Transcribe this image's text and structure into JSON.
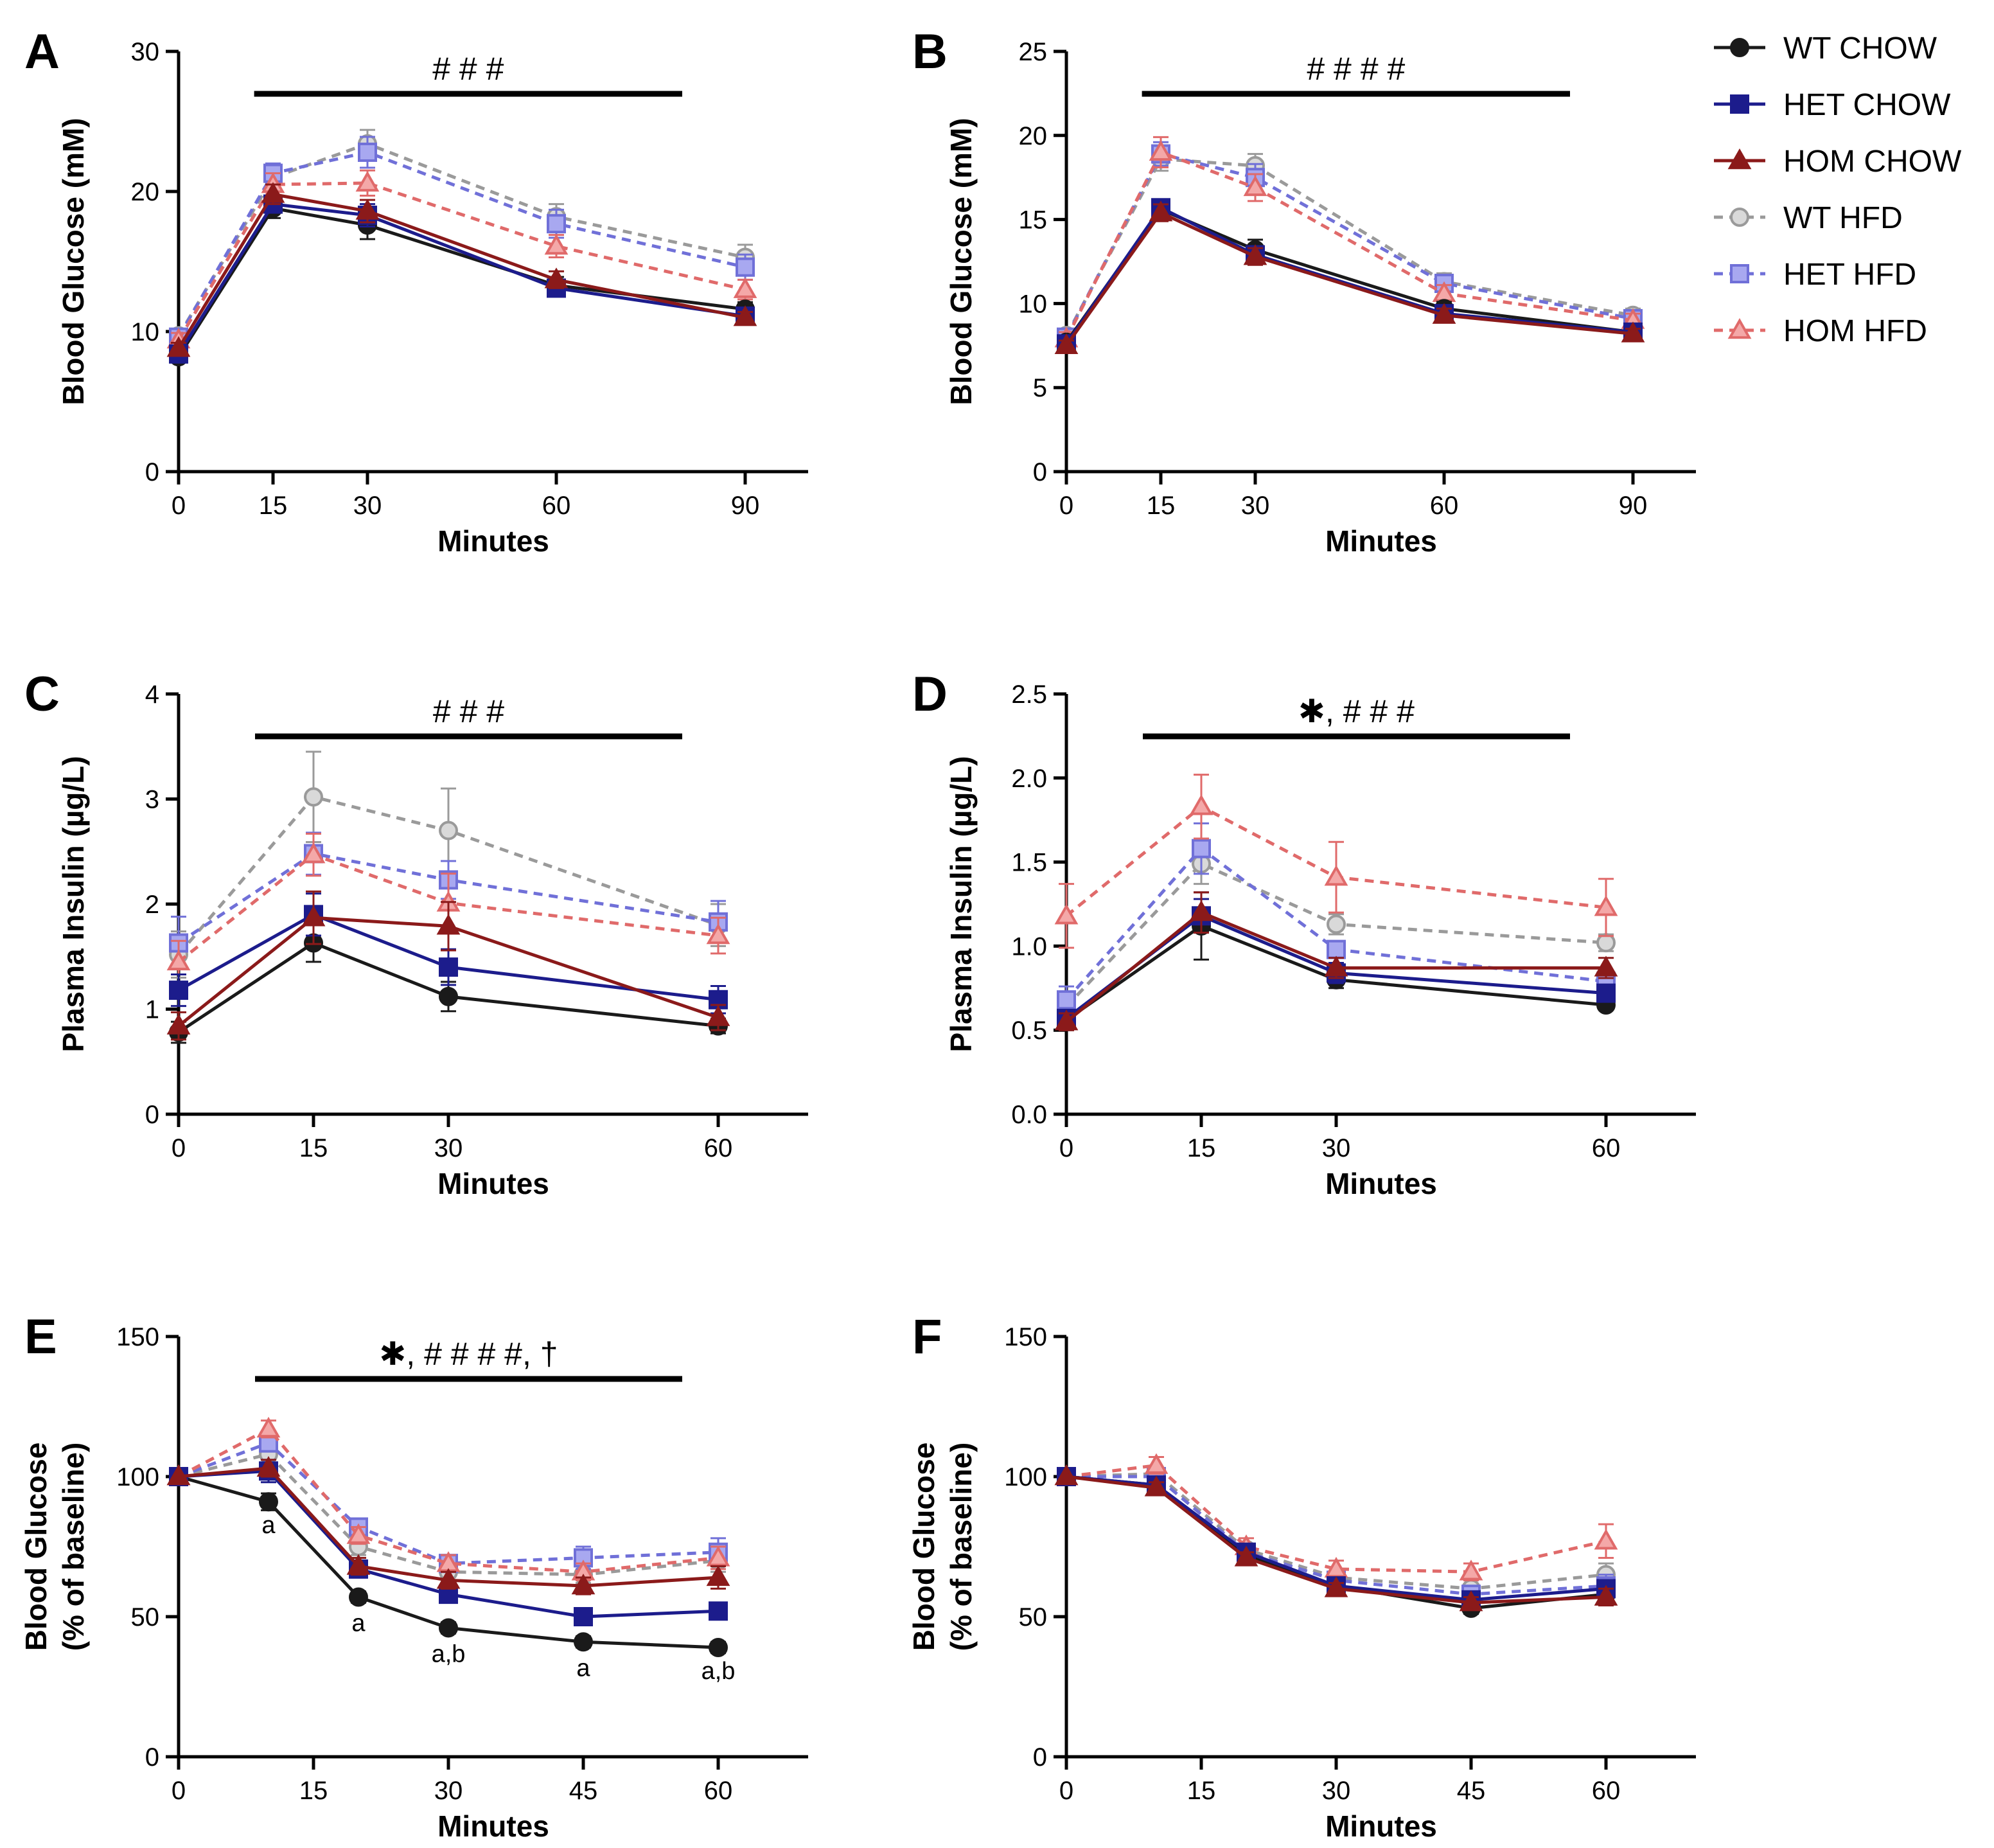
{
  "colors": {
    "wt_chow": "#1a1a1a",
    "het_chow": "#1c1c8c",
    "hom_chow": "#8b1a1a",
    "wt_hfd": "#9a9a9a",
    "het_hfd": "#7070d8",
    "hom_hfd": "#e06a6a",
    "wt_hfd_fill": "#d9d9d9",
    "het_hfd_fill": "#a8a8f0",
    "hom_hfd_fill": "#f4a8a8"
  },
  "legend": {
    "items": [
      {
        "label": "WT CHOW",
        "key": "wt_chow",
        "marker": "circle",
        "filled": true,
        "dashed": false
      },
      {
        "label": "HET CHOW",
        "key": "het_chow",
        "marker": "square",
        "filled": true,
        "dashed": false
      },
      {
        "label": "HOM CHOW",
        "key": "hom_chow",
        "marker": "triangle",
        "filled": true,
        "dashed": false
      },
      {
        "label": "WT HFD",
        "key": "wt_hfd",
        "marker": "circle",
        "filled": false,
        "dashed": true
      },
      {
        "label": "HET HFD",
        "key": "het_hfd",
        "marker": "square",
        "filled": false,
        "dashed": true
      },
      {
        "label": "HOM HFD",
        "key": "hom_hfd",
        "marker": "triangle",
        "filled": false,
        "dashed": true
      }
    ]
  },
  "chart_data": [
    {
      "panel": "A",
      "type": "line",
      "xlabel": "Minutes",
      "ylabel": [
        "Blood Glucose (mM)"
      ],
      "ylim": [
        0,
        30
      ],
      "yticks": [
        "0",
        "10",
        "20",
        "30"
      ],
      "xlim": [
        0,
        100
      ],
      "xticks": [
        0,
        15,
        30,
        60,
        90
      ],
      "x": [
        0,
        15,
        30,
        60,
        90
      ],
      "significance": {
        "label": "# # #",
        "x_from": 12,
        "x_to": 80
      },
      "series": [
        {
          "name": "WT CHOW",
          "values": [
            8.2,
            18.8,
            17.6,
            13.3,
            11.6
          ],
          "err": [
            0.4,
            0.7,
            1.0,
            0.6,
            0.5
          ]
        },
        {
          "name": "HET CHOW",
          "values": [
            8.4,
            19.1,
            18.3,
            13.1,
            11.1
          ],
          "err": [
            0.4,
            0.6,
            0.8,
            0.5,
            0.4
          ]
        },
        {
          "name": "HOM CHOW",
          "values": [
            8.8,
            19.8,
            18.6,
            13.7,
            11.0
          ],
          "err": [
            0.4,
            0.7,
            0.8,
            0.6,
            0.4
          ]
        },
        {
          "name": "WT HFD",
          "values": [
            9.7,
            21.0,
            23.4,
            18.2,
            15.3
          ],
          "err": [
            0.5,
            0.7,
            1.0,
            0.9,
            0.9
          ]
        },
        {
          "name": "HET HFD",
          "values": [
            9.6,
            21.3,
            22.8,
            17.7,
            14.6
          ],
          "err": [
            0.5,
            0.7,
            1.1,
            1.0,
            0.9
          ]
        },
        {
          "name": "HOM HFD",
          "values": [
            9.4,
            20.5,
            20.6,
            16.1,
            13.0
          ],
          "err": [
            0.5,
            0.8,
            0.9,
            0.8,
            0.7
          ]
        }
      ],
      "annotations": []
    },
    {
      "panel": "B",
      "type": "line",
      "xlabel": "Minutes",
      "ylabel": [
        "Blood Glucose (mM)"
      ],
      "ylim": [
        0,
        25
      ],
      "yticks": [
        "0",
        "5",
        "10",
        "15",
        "20",
        "25"
      ],
      "xlim": [
        0,
        100
      ],
      "xticks": [
        0,
        15,
        30,
        60,
        90
      ],
      "x": [
        0,
        15,
        30,
        60,
        90
      ],
      "significance": {
        "label": "# # # #",
        "x_from": 12,
        "x_to": 80
      },
      "series": [
        {
          "name": "WT CHOW",
          "values": [
            7.7,
            15.6,
            13.2,
            9.7,
            8.3
          ],
          "err": [
            0.3,
            0.5,
            0.6,
            0.4,
            0.3
          ]
        },
        {
          "name": "HET CHOW",
          "values": [
            7.6,
            15.7,
            12.9,
            9.4,
            8.3
          ],
          "err": [
            0.3,
            0.5,
            0.5,
            0.4,
            0.3
          ]
        },
        {
          "name": "HOM CHOW",
          "values": [
            7.5,
            15.4,
            12.8,
            9.3,
            8.2
          ],
          "err": [
            0.3,
            0.5,
            0.5,
            0.4,
            0.3
          ]
        },
        {
          "name": "WT HFD",
          "values": [
            8.1,
            18.6,
            18.2,
            11.3,
            9.3
          ],
          "err": [
            0.4,
            0.7,
            0.7,
            0.5,
            0.4
          ]
        },
        {
          "name": "HET HFD",
          "values": [
            8.0,
            18.9,
            17.5,
            11.2,
            9.1
          ],
          "err": [
            0.4,
            0.7,
            0.8,
            0.5,
            0.4
          ]
        },
        {
          "name": "HOM HFD",
          "values": [
            7.9,
            19.0,
            16.9,
            10.6,
            9.0
          ],
          "err": [
            0.4,
            0.9,
            0.8,
            0.5,
            0.4
          ]
        }
      ],
      "annotations": []
    },
    {
      "panel": "C",
      "type": "line",
      "xlabel": "Minutes",
      "ylabel": [
        "Plasma Insulin (µg/L)"
      ],
      "ylim": [
        0,
        4
      ],
      "yticks": [
        "0",
        "1",
        "2",
        "3",
        "4"
      ],
      "xlim": [
        0,
        70
      ],
      "xticks": [
        0,
        15,
        30,
        60
      ],
      "x": [
        0,
        15,
        30,
        60
      ],
      "significance": {
        "label": "# # #",
        "x_from": 8.5,
        "x_to": 56
      },
      "series": [
        {
          "name": "WT CHOW",
          "values": [
            0.78,
            1.63,
            1.12,
            0.84
          ],
          "err": [
            0.1,
            0.18,
            0.14,
            0.07
          ]
        },
        {
          "name": "HET CHOW",
          "values": [
            1.18,
            1.9,
            1.4,
            1.09
          ],
          "err": [
            0.15,
            0.2,
            0.17,
            0.13
          ]
        },
        {
          "name": "HOM CHOW",
          "values": [
            0.84,
            1.87,
            1.79,
            0.92
          ],
          "err": [
            0.13,
            0.25,
            0.23,
            0.12
          ]
        },
        {
          "name": "WT HFD",
          "values": [
            1.52,
            3.02,
            2.7,
            1.8
          ],
          "err": [
            0.22,
            0.43,
            0.4,
            0.2
          ]
        },
        {
          "name": "HET HFD",
          "values": [
            1.63,
            2.48,
            2.23,
            1.83
          ],
          "err": [
            0.25,
            0.2,
            0.18,
            0.2
          ]
        },
        {
          "name": "HOM HFD",
          "values": [
            1.45,
            2.47,
            2.01,
            1.7
          ],
          "err": [
            0.2,
            0.2,
            0.28,
            0.17
          ]
        }
      ],
      "annotations": []
    },
    {
      "panel": "D",
      "type": "line",
      "xlabel": "Minutes",
      "ylabel": [
        "Plasma Insulin (µg/L)"
      ],
      "ylim": [
        0,
        2.5
      ],
      "yticks": [
        "0.0",
        "0.5",
        "1.0",
        "1.5",
        "2.0",
        "2.5"
      ],
      "xlim": [
        0,
        70
      ],
      "xticks": [
        0,
        15,
        30,
        60
      ],
      "x": [
        0,
        15,
        30,
        60
      ],
      "significance": {
        "label": "✱, # # #",
        "x_from": 8.5,
        "x_to": 56
      },
      "series": [
        {
          "name": "WT CHOW",
          "values": [
            0.56,
            1.12,
            0.8,
            0.65
          ],
          "err": [
            0.06,
            0.2,
            0.05,
            0.03
          ]
        },
        {
          "name": "HET CHOW",
          "values": [
            0.57,
            1.18,
            0.84,
            0.72
          ],
          "err": [
            0.05,
            0.1,
            0.06,
            0.05
          ]
        },
        {
          "name": "HOM CHOW",
          "values": [
            0.55,
            1.2,
            0.87,
            0.87
          ],
          "err": [
            0.05,
            0.12,
            0.06,
            0.06
          ]
        },
        {
          "name": "WT HFD",
          "values": [
            0.64,
            1.49,
            1.13,
            1.02
          ],
          "err": [
            0.08,
            0.12,
            0.06,
            0.05
          ]
        },
        {
          "name": "HET HFD",
          "values": [
            0.68,
            1.58,
            0.98,
            0.79
          ],
          "err": [
            0.08,
            0.15,
            0.05,
            0.05
          ]
        },
        {
          "name": "HOM HFD",
          "values": [
            1.18,
            1.83,
            1.41,
            1.23
          ],
          "err": [
            0.19,
            0.19,
            0.21,
            0.17
          ]
        }
      ],
      "annotations": []
    },
    {
      "panel": "E",
      "type": "line",
      "xlabel": "Minutes",
      "ylabel": [
        "Blood Glucose",
        "(% of baseline)"
      ],
      "ylim": [
        0,
        150
      ],
      "yticks": [
        "0",
        "50",
        "100",
        "150"
      ],
      "xlim": [
        0,
        70
      ],
      "xticks": [
        0,
        15,
        30,
        45,
        60
      ],
      "x": [
        0,
        10,
        20,
        30,
        45,
        60
      ],
      "significance": {
        "label": "✱, # # # #, †",
        "x_from": 8.5,
        "x_to": 56
      },
      "series": [
        {
          "name": "WT CHOW",
          "values": [
            100,
            91,
            57,
            46,
            41,
            39
          ],
          "err": [
            0,
            3,
            2,
            2,
            2,
            2
          ]
        },
        {
          "name": "HET CHOW",
          "values": [
            100,
            102,
            67,
            58,
            50,
            52
          ],
          "err": [
            0,
            4,
            3,
            3,
            3,
            3
          ]
        },
        {
          "name": "HOM CHOW",
          "values": [
            100,
            103,
            68,
            63,
            61,
            64
          ],
          "err": [
            0,
            3,
            3,
            3,
            3,
            4
          ]
        },
        {
          "name": "WT HFD",
          "values": [
            100,
            108,
            75,
            66,
            65,
            70
          ],
          "err": [
            0,
            3,
            3,
            3,
            3,
            4
          ]
        },
        {
          "name": "HET HFD",
          "values": [
            100,
            112,
            82,
            69,
            71,
            73
          ],
          "err": [
            0,
            3,
            3,
            3,
            4,
            5
          ]
        },
        {
          "name": "HOM HFD",
          "values": [
            100,
            117,
            79,
            69,
            66,
            71
          ],
          "err": [
            0,
            3,
            3,
            3,
            3,
            4
          ]
        }
      ],
      "annotations": [
        {
          "x": 10,
          "y": 83,
          "text": "a"
        },
        {
          "x": 20,
          "y": 48,
          "text": "a"
        },
        {
          "x": 30,
          "y": 37,
          "text": "a,b"
        },
        {
          "x": 45,
          "y": 32,
          "text": "a"
        },
        {
          "x": 60,
          "y": 31,
          "text": "a,b"
        }
      ]
    },
    {
      "panel": "F",
      "type": "line",
      "xlabel": "Minutes",
      "ylabel": [
        "Blood Glucose",
        "(% of baseline)"
      ],
      "ylim": [
        0,
        150
      ],
      "yticks": [
        "0",
        "50",
        "100",
        "150"
      ],
      "xlim": [
        0,
        70
      ],
      "xticks": [
        0,
        15,
        30,
        45,
        60
      ],
      "x": [
        0,
        10,
        20,
        30,
        45,
        60
      ],
      "significance": null,
      "series": [
        {
          "name": "WT CHOW",
          "values": [
            100,
            97,
            72,
            61,
            53,
            58
          ],
          "err": [
            0,
            2,
            2,
            2,
            2,
            3
          ]
        },
        {
          "name": "HET CHOW",
          "values": [
            100,
            97,
            73,
            61,
            56,
            60
          ],
          "err": [
            0,
            2,
            2,
            2,
            2,
            3
          ]
        },
        {
          "name": "HOM CHOW",
          "values": [
            100,
            96,
            71,
            60,
            55,
            57
          ],
          "err": [
            0,
            2,
            2,
            2,
            2,
            3
          ]
        },
        {
          "name": "WT HFD",
          "values": [
            100,
            101,
            74,
            64,
            60,
            65
          ],
          "err": [
            0,
            2,
            2,
            2,
            3,
            4
          ]
        },
        {
          "name": "HET HFD",
          "values": [
            100,
            100,
            73,
            63,
            58,
            61
          ],
          "err": [
            0,
            2,
            2,
            2,
            3,
            4
          ]
        },
        {
          "name": "HOM HFD",
          "values": [
            100,
            104,
            75,
            67,
            66,
            77
          ],
          "err": [
            0,
            3,
            3,
            3,
            3,
            6
          ]
        }
      ],
      "annotations": []
    }
  ]
}
